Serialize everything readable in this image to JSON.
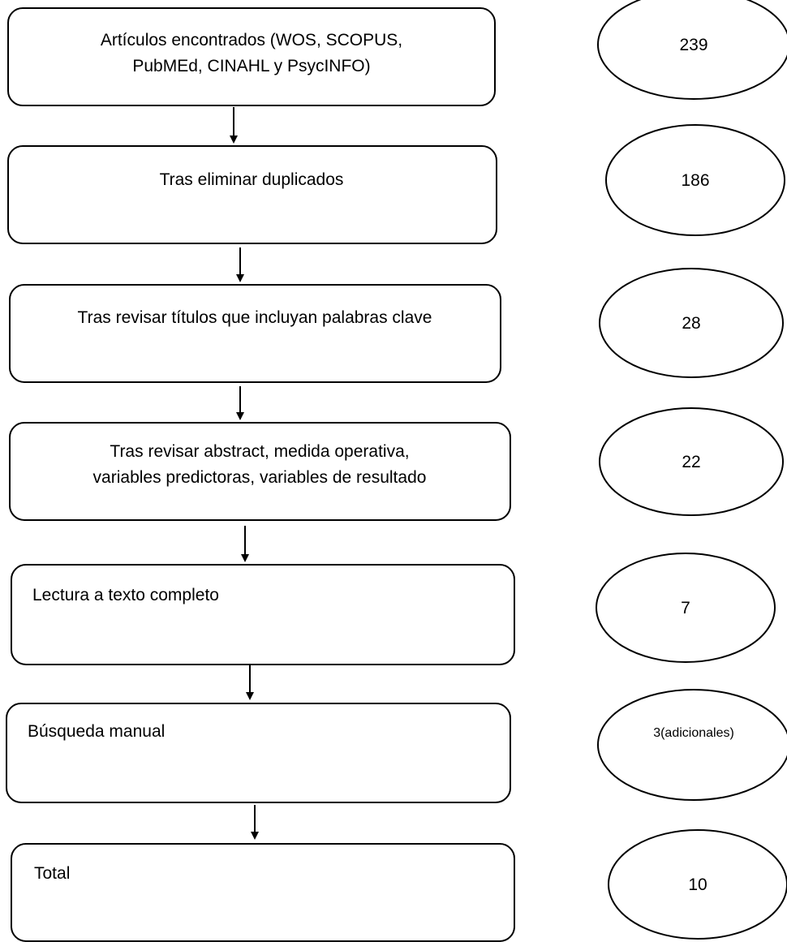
{
  "steps": [
    {
      "lines": [
        "Artículos encontrados (WOS, SCOPUS,",
        "PubMEd, CINAHL y PsycINFO)"
      ],
      "count": "239"
    },
    {
      "lines": [
        "Tras eliminar duplicados"
      ],
      "count": "186"
    },
    {
      "lines": [
        "Tras revisar títulos que incluyan palabras clave"
      ],
      "count": "28"
    },
    {
      "lines": [
        "Tras revisar abstract, medida operativa,",
        "variables predictoras, variables de resultado"
      ],
      "count": "22"
    },
    {
      "lines": [
        "Lectura a texto completo"
      ],
      "count": "7"
    },
    {
      "lines": [
        "Búsqueda manual"
      ],
      "count": "3(adicionales)"
    },
    {
      "lines": [
        "Total"
      ],
      "count": "10"
    }
  ]
}
